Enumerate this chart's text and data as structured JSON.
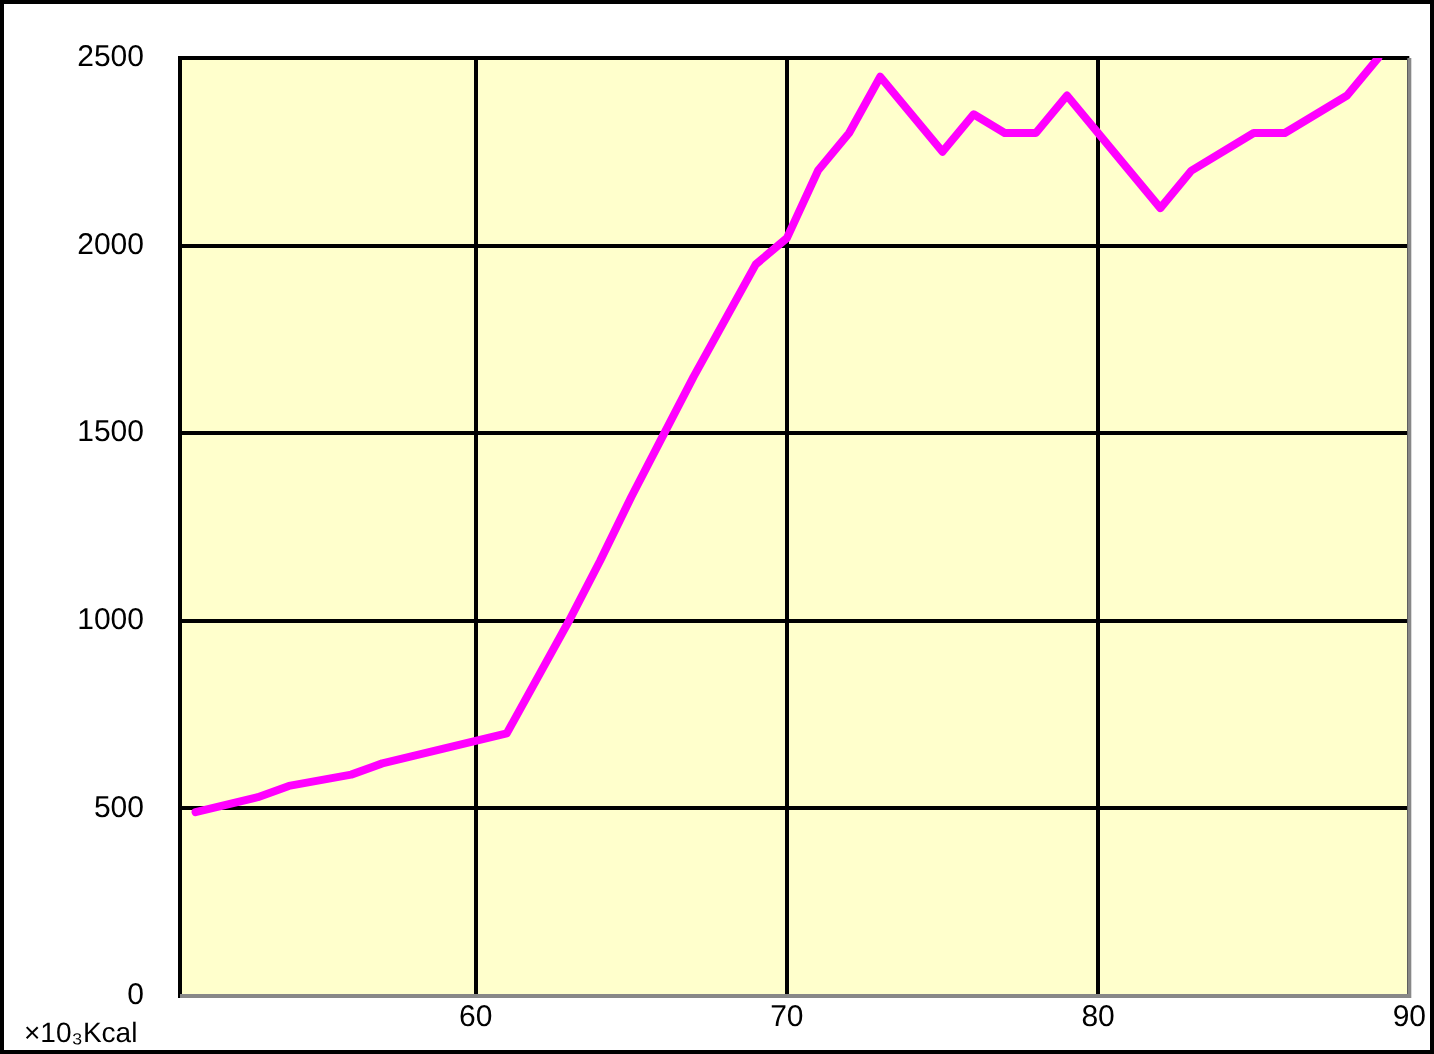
{
  "chart_data": {
    "type": "line",
    "ylabel": "×10₃Kcal",
    "xlim": [
      50.5,
      90
    ],
    "xticks": [
      60,
      70,
      80,
      90
    ],
    "ylim": [
      0,
      2500
    ],
    "yticks": [
      0,
      500,
      1000,
      1500,
      2000,
      2500
    ],
    "grid": true,
    "legend": false,
    "marker": "none",
    "line_style": "solid",
    "series": [
      {
        "color": "#ff00ff",
        "x": [
          51,
          53,
          54,
          56,
          57,
          59,
          60,
          61,
          62,
          63,
          64,
          65,
          66,
          67,
          68,
          69,
          70,
          71,
          72,
          73,
          75,
          76,
          77,
          78,
          79,
          82,
          83,
          85,
          86,
          88,
          89
        ],
        "values": [
          490,
          530,
          560,
          590,
          620,
          660,
          680,
          700,
          850,
          1000,
          1160,
          1330,
          1490,
          1650,
          1800,
          1950,
          2020,
          2200,
          2300,
          2450,
          2250,
          2350,
          2300,
          2300,
          2400,
          2100,
          2200,
          2300,
          2300,
          2400,
          2500
        ]
      }
    ]
  }
}
